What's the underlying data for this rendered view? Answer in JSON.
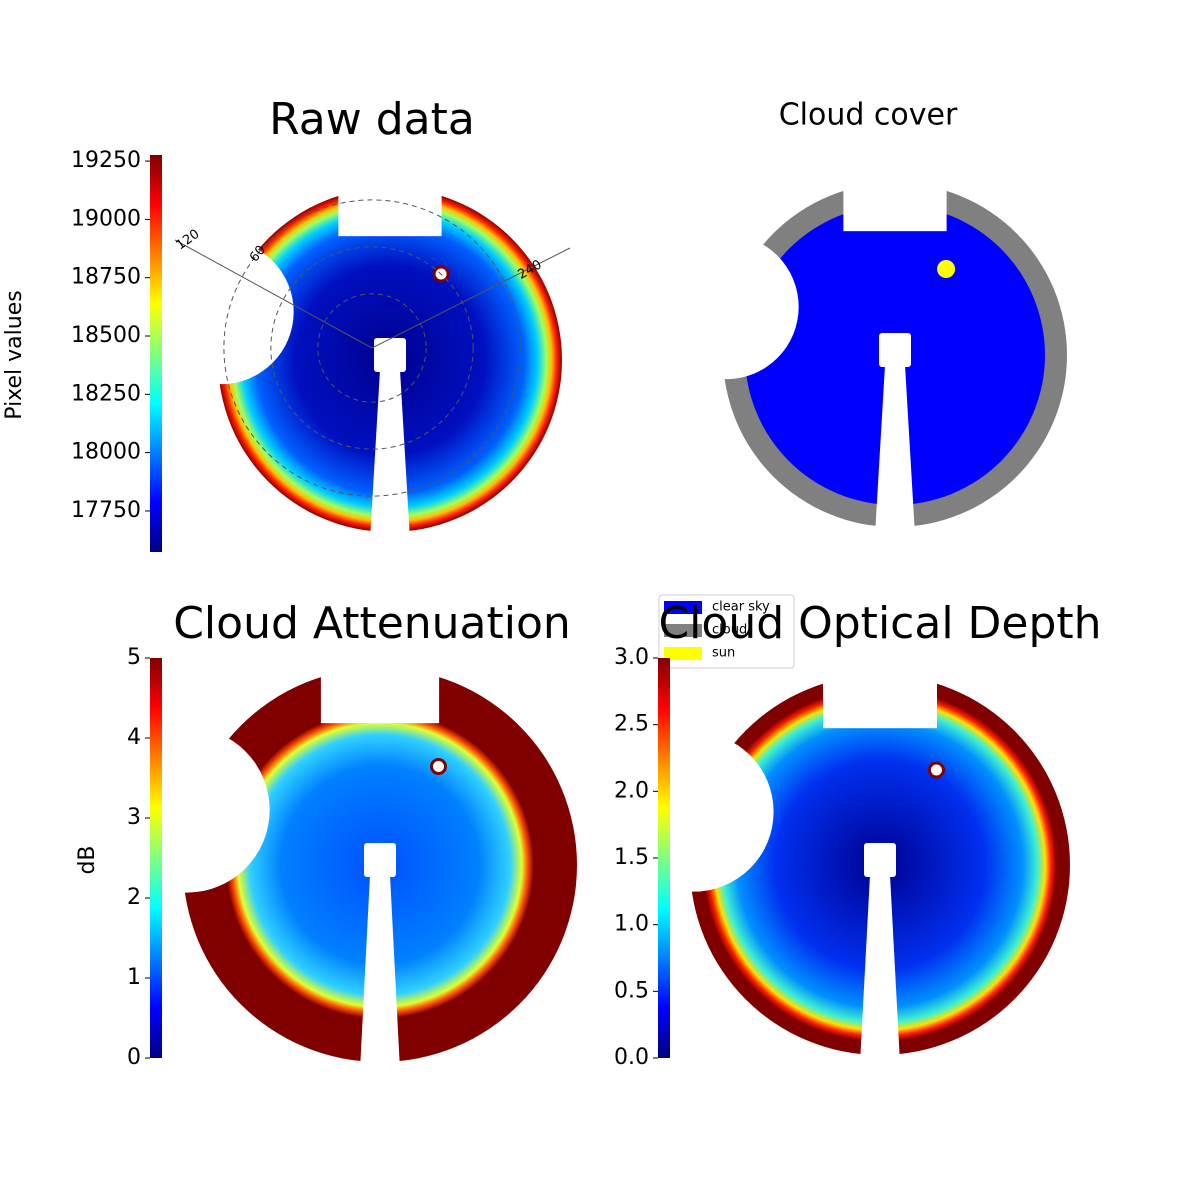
{
  "chart_data": [
    {
      "type": "image",
      "title": "Raw data",
      "ylabel": "Pixel values",
      "colormap": "jet",
      "ylim": [
        17574,
        19276
      ],
      "yticks": [
        17750,
        18000,
        18250,
        18500,
        18750,
        19000,
        19250
      ],
      "annotations": [
        "120",
        "60",
        "240"
      ]
    },
    {
      "type": "mask",
      "title": "Cloud cover",
      "series": [
        {
          "name": "clear sky",
          "color": "#0000ff"
        },
        {
          "name": "cloud",
          "color": "#808080"
        },
        {
          "name": "sun",
          "color": "#ffff00"
        }
      ]
    },
    {
      "type": "image",
      "title": "Cloud Attenuation",
      "ylabel": "dB",
      "colormap": "jet",
      "ylim": [
        0,
        5
      ],
      "yticks": [
        0,
        1,
        2,
        3,
        4,
        5
      ]
    },
    {
      "type": "image",
      "title": "Cloud Optical Depth",
      "colormap": "jet",
      "ylim": [
        0,
        3
      ],
      "yticks": [
        {
          "value": 0,
          "label": "0.0"
        },
        0.5,
        {
          "value": 1,
          "label": "1.0"
        },
        1.5,
        {
          "value": 2,
          "label": "2.0"
        },
        2.5,
        {
          "value": 3,
          "label": "3.0"
        }
      ]
    }
  ]
}
